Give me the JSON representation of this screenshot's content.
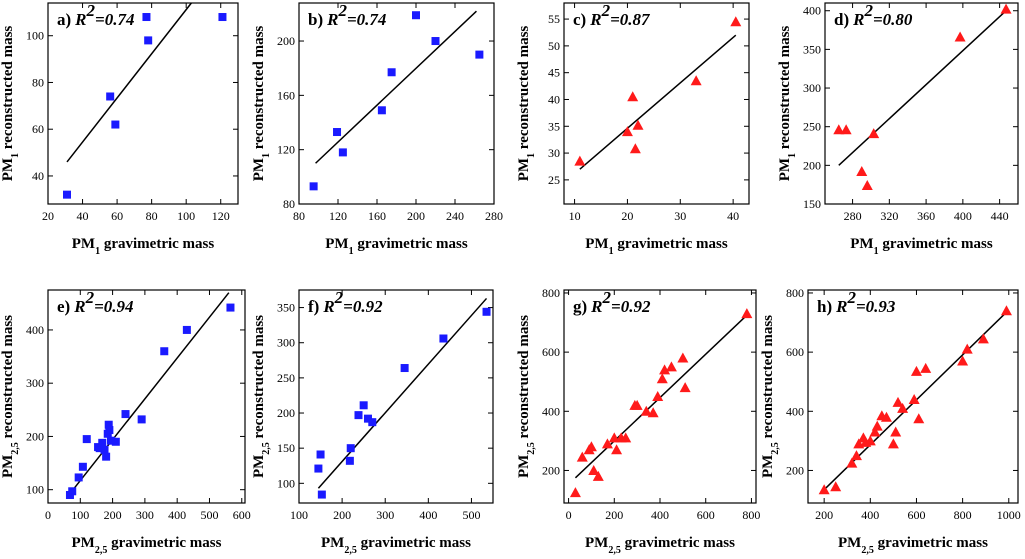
{
  "chart_data": [
    {
      "type": "scatter",
      "panel": "a)",
      "r2_label": "R",
      "r2_sup": "2",
      "r2_value": "=0.74",
      "marker": "square",
      "color": "#1a1aff",
      "xlabel": {
        "pre": "PM",
        "sub": "1",
        "post": " gravimetric mass"
      },
      "ylabel": {
        "pre": "PM",
        "sub": "1",
        "post": " reconstructed mass"
      },
      "xlim": [
        20,
        130
      ],
      "ylim": [
        28,
        114
      ],
      "xticks": [
        20,
        40,
        60,
        80,
        100,
        120
      ],
      "yticks": [
        40,
        60,
        80,
        100
      ],
      "x": [
        31,
        56,
        59,
        77,
        78,
        121
      ],
      "y": [
        32,
        74,
        62,
        108,
        98,
        108
      ],
      "fit": {
        "x": [
          31,
          103
        ],
        "y": [
          46,
          114
        ]
      }
    },
    {
      "type": "scatter",
      "panel": "b)",
      "r2_label": "R",
      "r2_sup": "2",
      "r2_value": "=0.74",
      "marker": "square",
      "color": "#1a1aff",
      "xlabel": {
        "pre": "PM",
        "sub": "1",
        "post": " gravimetric mass"
      },
      "ylabel": {
        "pre": "PM",
        "sub": "1",
        "post": " reconstructed mass"
      },
      "xlim": [
        80,
        280
      ],
      "ylim": [
        80,
        228
      ],
      "xticks": [
        80,
        120,
        160,
        200,
        240,
        280
      ],
      "yticks": [
        80,
        120,
        160,
        200
      ],
      "x": [
        95,
        119,
        125,
        165,
        175,
        200,
        220,
        265
      ],
      "y": [
        93,
        133,
        118,
        149,
        177,
        219,
        200,
        190
      ],
      "fit": {
        "x": [
          97,
          262
        ],
        "y": [
          110,
          222
        ]
      }
    },
    {
      "type": "scatter",
      "panel": "c)",
      "r2_label": "R",
      "r2_sup": "2",
      "r2_value": "=0.87",
      "marker": "triangle",
      "color": "#ff1a1a",
      "xlabel": {
        "pre": "PM",
        "sub": "1",
        "post": " gravimetric mass"
      },
      "ylabel": {
        "pre": "PM",
        "sub": "1",
        "post": " reconstructed mass"
      },
      "xlim": [
        8,
        43
      ],
      "ylim": [
        20.5,
        58
      ],
      "xticks": [
        10,
        20,
        30,
        40
      ],
      "yticks": [
        25,
        30,
        35,
        40,
        45,
        50,
        55
      ],
      "x": [
        11,
        20,
        21,
        21.5,
        22,
        33,
        40.5
      ],
      "y": [
        28.5,
        34,
        40.5,
        30.8,
        35.2,
        43.5,
        54.5
      ],
      "fit": {
        "x": [
          11,
          40.5
        ],
        "y": [
          27,
          52
        ]
      }
    },
    {
      "type": "scatter",
      "panel": "d)",
      "r2_label": "R",
      "r2_sup": "2",
      "r2_value": "=0.80",
      "marker": "triangle",
      "color": "#ff1a1a",
      "xlabel": {
        "pre": "PM",
        "sub": "1",
        "post": " gravimetric mass"
      },
      "ylabel": {
        "pre": "PM",
        "sub": "1",
        "post": " reconstructed mass"
      },
      "xlim": [
        250,
        460
      ],
      "ylim": [
        150,
        410
      ],
      "xticks": [
        280,
        320,
        360,
        400,
        440
      ],
      "yticks": [
        150,
        200,
        250,
        300,
        350,
        400
      ],
      "x": [
        265,
        273,
        290,
        296,
        303,
        397,
        447
      ],
      "y": [
        246,
        246,
        192,
        174,
        241,
        366,
        402
      ],
      "fit": {
        "x": [
          265,
          447
        ],
        "y": [
          200,
          400
        ]
      }
    },
    {
      "type": "scatter",
      "panel": "e)",
      "r2_label": "R",
      "r2_sup": "2",
      "r2_value": "=0.94",
      "marker": "square",
      "color": "#1a1aff",
      "xlabel": {
        "pre": "PM",
        "sub": "2,5",
        "post": " gravimetric mass"
      },
      "ylabel": {
        "pre": "PM",
        "sub": "2,5",
        "post": " reconstructed mass"
      },
      "xlim": [
        0,
        610
      ],
      "ylim": [
        75,
        475
      ],
      "xticks": [
        0,
        100,
        200,
        300,
        400,
        500,
        600
      ],
      "yticks": [
        100,
        200,
        300,
        400
      ],
      "x": [
        68,
        75,
        95,
        108,
        120,
        155,
        160,
        168,
        175,
        180,
        185,
        188,
        190,
        195,
        210,
        240,
        290,
        360,
        430,
        565
      ],
      "y": [
        90,
        97,
        123,
        143,
        195,
        180,
        178,
        188,
        175,
        162,
        205,
        222,
        212,
        192,
        190,
        242,
        232,
        360,
        400,
        442
      ],
      "fit": {
        "x": [
          62,
          560
        ],
        "y": [
          88,
          470
        ]
      }
    },
    {
      "type": "scatter",
      "panel": "f)",
      "r2_label": "R",
      "r2_sup": "2",
      "r2_value": "=0.92",
      "marker": "square",
      "color": "#1a1aff",
      "xlabel": {
        "pre": "PM",
        "sub": "2,5",
        "post": " gravimetric mass"
      },
      "ylabel": {
        "pre": "PM",
        "sub": "2,5",
        "post": " reconstructed mass"
      },
      "xlim": [
        100,
        550
      ],
      "ylim": [
        72,
        375
      ],
      "xticks": [
        100,
        200,
        300,
        400,
        500
      ],
      "yticks": [
        100,
        150,
        200,
        250,
        300,
        350
      ],
      "x": [
        145,
        150,
        153,
        218,
        220,
        238,
        250,
        260,
        270,
        345,
        435,
        535
      ],
      "y": [
        121,
        141,
        84,
        132,
        150,
        197,
        211,
        192,
        187,
        264,
        306,
        344
      ],
      "fit": {
        "x": [
          145,
          535
        ],
        "y": [
          93,
          363
        ]
      }
    },
    {
      "type": "scatter",
      "panel": "g)",
      "r2_label": "R",
      "r2_sup": "2",
      "r2_value": "=0.92",
      "marker": "triangle",
      "color": "#ff1a1a",
      "xlabel": {
        "pre": "PM",
        "sub": "2,5",
        "post": " gravimetric mass"
      },
      "ylabel": {
        "pre": "PM",
        "sub": "2,5",
        "post": " reconstructed mass"
      },
      "xlim": [
        -20,
        820
      ],
      "ylim": [
        90,
        810
      ],
      "xticks": [
        0,
        200,
        400,
        600,
        800
      ],
      "yticks": [
        200,
        400,
        600,
        800
      ],
      "x": [
        30,
        60,
        90,
        100,
        110,
        130,
        170,
        200,
        210,
        230,
        250,
        290,
        300,
        340,
        370,
        390,
        410,
        420,
        450,
        500,
        510,
        780
      ],
      "y": [
        125,
        245,
        270,
        280,
        200,
        180,
        290,
        310,
        270,
        310,
        310,
        420,
        420,
        400,
        395,
        450,
        510,
        540,
        550,
        580,
        480,
        730
      ],
      "fit": {
        "x": [
          30,
          780
        ],
        "y": [
          175,
          725
        ]
      }
    },
    {
      "type": "scatter",
      "panel": "h)",
      "r2_label": "R",
      "r2_sup": "2",
      "r2_value": "=0.93",
      "marker": "triangle",
      "color": "#ff1a1a",
      "xlabel": {
        "pre": "PM",
        "sub": "2,5",
        "post": " gravimetric mass"
      },
      "ylabel": {
        "pre": "PM",
        "sub": "2,5",
        "post": " reconstructed mass"
      },
      "xlim": [
        130,
        1040
      ],
      "ylim": [
        90,
        810
      ],
      "xticks": [
        200,
        400,
        600,
        800,
        1000
      ],
      "yticks": [
        200,
        400,
        600,
        800
      ],
      "x": [
        200,
        250,
        320,
        340,
        350,
        370,
        380,
        400,
        420,
        430,
        450,
        470,
        500,
        510,
        520,
        540,
        590,
        600,
        610,
        640,
        800,
        820,
        890,
        990
      ],
      "y": [
        135,
        145,
        225,
        250,
        290,
        310,
        295,
        300,
        330,
        350,
        385,
        380,
        290,
        330,
        430,
        410,
        440,
        535,
        375,
        545,
        570,
        610,
        645,
        740
      ],
      "fit": {
        "x": [
          200,
          990
        ],
        "y": [
          135,
          735
        ]
      }
    }
  ]
}
